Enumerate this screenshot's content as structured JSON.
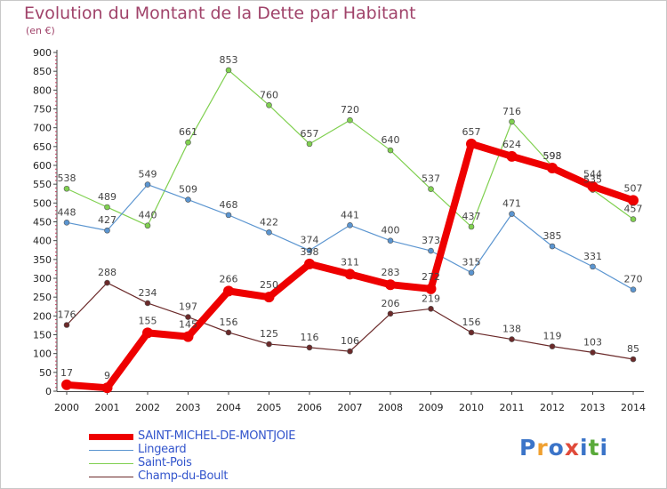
{
  "title": "Evolution du Montant de la Dette par Habitant",
  "unit": "(en €)",
  "logo": {
    "text": "Proxiti",
    "colors": [
      "#3b74c8",
      "#f0a030",
      "#3b74c8",
      "#e04a3a",
      "#3b74c8",
      "#5aaa3a",
      "#3b74c8"
    ]
  },
  "chart_data": {
    "type": "line",
    "x": [
      "2000",
      "2001",
      "2002",
      "2003",
      "2004",
      "2005",
      "2006",
      "2007",
      "2008",
      "2009",
      "2010",
      "2011",
      "2012",
      "2013",
      "2014"
    ],
    "ylim": [
      0,
      900
    ],
    "yticks": [
      0,
      50,
      100,
      150,
      200,
      250,
      300,
      350,
      400,
      450,
      500,
      550,
      600,
      650,
      700,
      750,
      800,
      850,
      900
    ],
    "grid": false,
    "legend_position": "bottom-left",
    "series": [
      {
        "name": "Saint-Pois",
        "color": "#80d050",
        "width": 1.2,
        "marker": 3,
        "values": [
          538,
          489,
          440,
          661,
          853,
          760,
          657,
          720,
          640,
          537,
          437,
          716,
          598,
          535,
          457
        ],
        "labels": [
          "538",
          "489",
          "440",
          "661",
          "853",
          "760",
          "657",
          "720",
          "640",
          "537",
          "437",
          "716",
          "598",
          "535",
          "457"
        ]
      },
      {
        "name": "Lingeard",
        "color": "#5b95d0",
        "width": 1.2,
        "marker": 3,
        "values": [
          448,
          427,
          549,
          509,
          468,
          422,
          374,
          441,
          400,
          373,
          315,
          471,
          385,
          331,
          270
        ],
        "labels": [
          "448",
          "427",
          "549",
          "509",
          "468",
          "422",
          "374",
          "441",
          "400",
          "373",
          "315",
          "471",
          "385",
          "331",
          "270"
        ]
      },
      {
        "name": "Champ-du-Boult",
        "color": "#6b2a2a",
        "width": 1.2,
        "marker": 3,
        "values": [
          176,
          288,
          234,
          197,
          156,
          125,
          116,
          106,
          206,
          219,
          156,
          138,
          119,
          103,
          85
        ],
        "labels": [
          "176",
          "288",
          "234",
          "197",
          "156",
          "125",
          "116",
          "106",
          "206",
          "219",
          "156",
          "138",
          "119",
          "103",
          "85"
        ]
      },
      {
        "name": "SAINT-MICHEL-DE-MONTJOIE",
        "color": "#ee0000",
        "width": 8,
        "marker": 6,
        "values": [
          17,
          9,
          155,
          145,
          266,
          250,
          338,
          311,
          283,
          272,
          657,
          624,
          593,
          544,
          507
        ],
        "labels": [
          "17",
          "9",
          "155",
          "145",
          "266",
          "250",
          "338",
          "311",
          "283",
          "272",
          "657",
          "624",
          "593",
          "544",
          "507"
        ]
      }
    ],
    "legend": [
      "SAINT-MICHEL-DE-MONTJOIE",
      "Lingeard",
      "Saint-Pois",
      "Champ-du-Boult"
    ]
  }
}
